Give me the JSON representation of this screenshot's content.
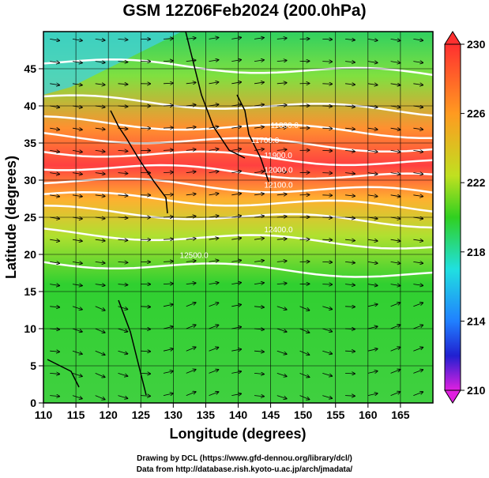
{
  "title": "GSM 12Z06Feb2024 (200.0hPa)",
  "axes": {
    "xlabel": "Longitude (degrees)",
    "ylabel": "Latitude  (degrees)",
    "xticks": [
      "110",
      "115",
      "120",
      "125",
      "130",
      "135",
      "140",
      "145",
      "150",
      "155",
      "160",
      "165"
    ],
    "yticks": [
      "0",
      "5",
      "10",
      "15",
      "20",
      "25",
      "30",
      "35",
      "40",
      "45"
    ]
  },
  "colorbar": {
    "labels": [
      "230",
      "226",
      "222",
      "218",
      "214",
      "210"
    ],
    "colors": [
      "#ff3030",
      "#ff9a20",
      "#ffe020",
      "#30d020",
      "#20e0e0",
      "#2080ff",
      "#2020d0",
      "#e020e0"
    ]
  },
  "chart_data": {
    "type": "heatmap",
    "title": "GSM 12Z06Feb2024 (200.0hPa)",
    "xlabel": "Longitude (degrees)",
    "ylabel": "Latitude  (degrees)",
    "xlim": [
      110,
      170
    ],
    "ylim": [
      0,
      50
    ],
    "colorbar_range": [
      210,
      230
    ],
    "contour_labels": [
      {
        "text": "11800.0",
        "lon": 145,
        "lat": 37
      },
      {
        "text": "11700.0",
        "lon": 142,
        "lat": 35
      },
      {
        "text": "11900.0",
        "lon": 144,
        "lat": 33
      },
      {
        "text": "12000.0",
        "lon": 144,
        "lat": 31
      },
      {
        "text": "12100.0",
        "lon": 144,
        "lat": 29
      },
      {
        "text": "12400.0",
        "lon": 144,
        "lat": 23
      },
      {
        "text": "12500.0",
        "lon": 131,
        "lat": 19.5
      }
    ]
  },
  "credits": {
    "line1": "Drawing by DCL (https://www.gfd-dennou.org/library/dcl/)",
    "line2": "Data from http://database.rish.kyoto-u.ac.jp/arch/jmadata/"
  }
}
